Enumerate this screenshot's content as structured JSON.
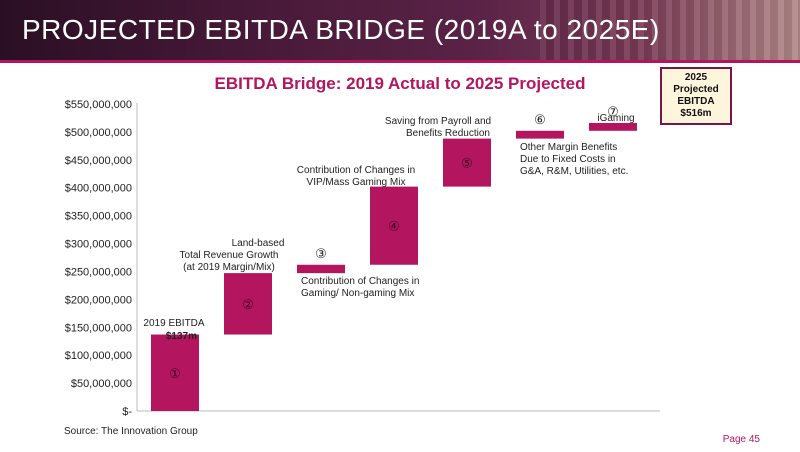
{
  "header": {
    "title": "PROJECTED EBITDA BRIDGE (2019A to 2025E)"
  },
  "end_box": {
    "line1": "2025",
    "line2": "Projected",
    "line3": "EBITDA",
    "value": "$516m"
  },
  "footer": {
    "source": "Source: The Innovation Group",
    "page": "Page 45"
  },
  "colors": {
    "bar": "#b3155f",
    "accent": "#b3155f"
  },
  "chart_data": {
    "type": "bar",
    "title": "EBITDA Bridge: 2019 Actual to 2025 Projected",
    "ylim": [
      0,
      550000000
    ],
    "yticks": [
      "$-",
      "$50,000,000",
      "$100,000,000",
      "$150,000,000",
      "$200,000,000",
      "$250,000,000",
      "$300,000,000",
      "$350,000,000",
      "$400,000,000",
      "$450,000,000",
      "$500,000,000",
      "$550,000,000"
    ],
    "grid": false,
    "bars": [
      {
        "marker": "①",
        "base": 0,
        "top": 137000000,
        "label": "2019 EBITDA",
        "value_label": "$137m"
      },
      {
        "marker": "②",
        "base": 137000000,
        "top": 247000000,
        "label": "Land-based Total Revenue Growth (at 2019 Margin/Mix)"
      },
      {
        "marker": "③",
        "base": 247000000,
        "top": 262000000,
        "label": "Contribution of Changes in Gaming/ Non-gaming Mix"
      },
      {
        "marker": "④",
        "base": 262000000,
        "top": 402000000,
        "label": "Contribution of Changes in VIP/Mass Gaming Mix"
      },
      {
        "marker": "⑤",
        "base": 402000000,
        "top": 488000000,
        "label": "Saving from Payroll and Benefits Reduction"
      },
      {
        "marker": "⑥",
        "base": 488000000,
        "top": 502000000,
        "label": "Other Margin Benefits Due to Fixed Costs in G&A, R&M, Utilities, etc."
      },
      {
        "marker": "⑦",
        "base": 502000000,
        "top": 516000000,
        "label": "iGaming"
      }
    ]
  }
}
